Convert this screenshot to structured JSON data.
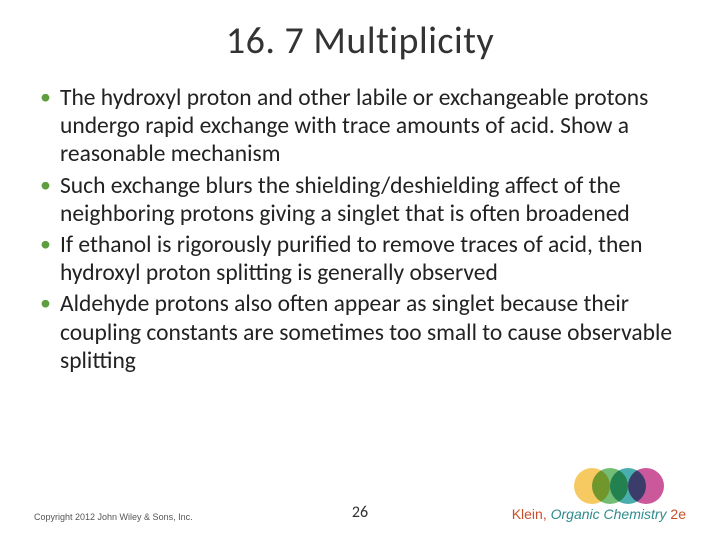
{
  "title": "16. 7 Multiplicity",
  "bullets": [
    "The hydroxyl proton and other labile or exchangeable protons undergo rapid exchange with trace amounts of acid.  Show a reasonable mechanism",
    "Such exchange blurs the shielding/deshielding affect of the neighboring protons giving a singlet that is often broadened",
    "If ethanol is rigorously purified to remove traces of acid, then hydroxyl proton splitting is generally observed",
    "Aldehyde protons also often appear as singlet because their coupling constants are sometimes too small to cause observable splitting"
  ],
  "footer": {
    "copyright": "Copyright 2012 John Wiley & Sons, Inc.",
    "page_number": "26",
    "book": {
      "author": "Klein, ",
      "title": "Organic Chemistry ",
      "edition": "2e",
      "author_color": "#c94f28",
      "title_color": "#2e8b8b",
      "edition_color": "#c94f28"
    }
  },
  "logo": {
    "colors": [
      "#f5c145",
      "#5bb15b",
      "#2aa0a0",
      "#c23a8a"
    ],
    "circle_diameter": 36,
    "overlap": 18
  },
  "styling": {
    "background": "#ffffff",
    "title_color": "#333333",
    "title_fontsize": 38,
    "body_color": "#222222",
    "body_fontsize": 23.5,
    "bullet_marker_color": "#5f9e3e",
    "copyright_fontsize": 9,
    "pagenum_fontsize": 16,
    "booktitle_fontsize": 14
  }
}
